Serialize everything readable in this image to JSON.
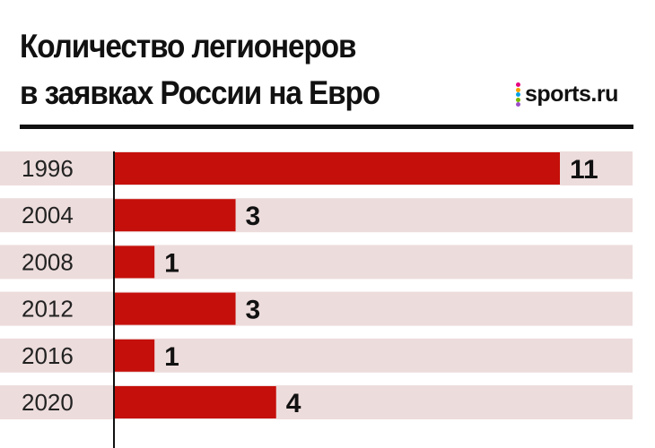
{
  "header": {
    "title_line1": "Количество легионеров",
    "title_line2": "в заявках России на Евро"
  },
  "logo": {
    "text": "sports.ru",
    "dot_colors": [
      "#e6007e",
      "#f6a200",
      "#00a0e3",
      "#7ab800",
      "#9b4dca"
    ]
  },
  "colors": {
    "bar": "#c50f0a",
    "band": "#eddcdc",
    "axis": "#111111"
  },
  "chart_data": {
    "type": "bar",
    "orientation": "horizontal",
    "categories": [
      "1996",
      "2004",
      "2008",
      "2012",
      "2016",
      "2020"
    ],
    "values": [
      11,
      3,
      1,
      3,
      1,
      4
    ],
    "title": "Количество легионеров в заявках России на Евро",
    "xlabel": "",
    "ylabel": "",
    "xlim": [
      0,
      11
    ],
    "grid": false,
    "legend": "none",
    "data_labels": true
  }
}
